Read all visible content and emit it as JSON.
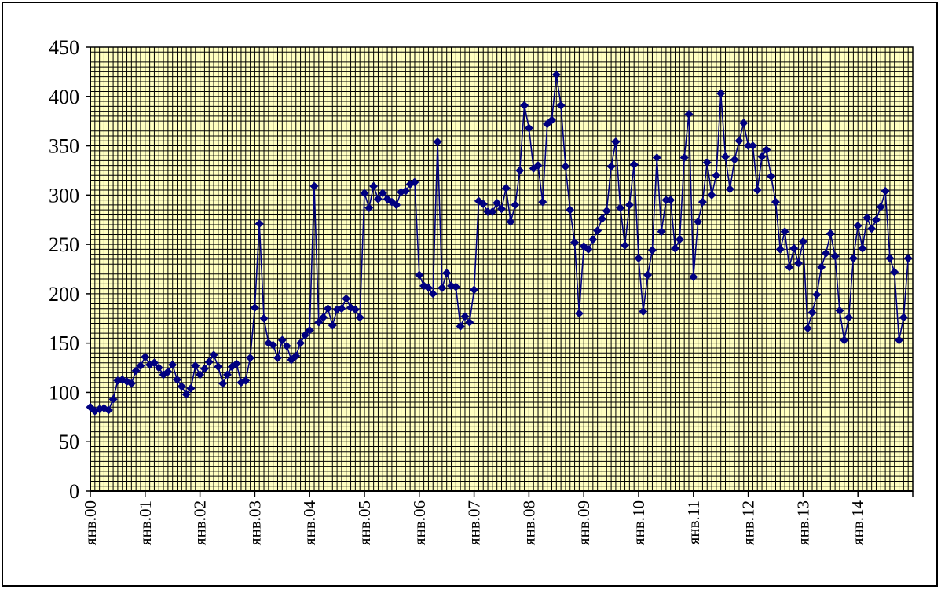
{
  "chart_data": {
    "type": "line",
    "title": "",
    "xlabel": "",
    "ylabel": "",
    "ylim": [
      0,
      450
    ],
    "y_ticks": [
      "0",
      "50",
      "100",
      "150",
      "200",
      "250",
      "300",
      "350",
      "400",
      "450"
    ],
    "x_tick_labels": [
      "янв.00",
      "янв.01",
      "янв.02",
      "янв.03",
      "янв.04",
      "янв.05",
      "янв.06",
      "янв.07",
      "янв.08",
      "янв.09",
      "янв.10",
      "янв.11",
      "янв.12",
      "янв.13",
      "янв.14"
    ],
    "x_range_months": [
      0,
      180
    ],
    "grid": "on",
    "legend": "none",
    "colors": {
      "series": "#000080",
      "plot_bg": "#FFFFC0",
      "grid": "#000000"
    },
    "series": [
      {
        "values": [
          85,
          81,
          83,
          84,
          82,
          93,
          112,
          113,
          111,
          109,
          122,
          127,
          136,
          128,
          130,
          125,
          118,
          121,
          128,
          113,
          106,
          98,
          104,
          127,
          118,
          124,
          131,
          138,
          126,
          109,
          118,
          126,
          129,
          110,
          112,
          135,
          186,
          271,
          175,
          150,
          148,
          135,
          153,
          147,
          133,
          137,
          150,
          158,
          163,
          309,
          171,
          176,
          185,
          168,
          184,
          185,
          195,
          186,
          184,
          176,
          302,
          287,
          309,
          296,
          302,
          296,
          293,
          290,
          303,
          304,
          311,
          313,
          219,
          208,
          206,
          200,
          354,
          206,
          221,
          208,
          207,
          167,
          177,
          171,
          204,
          294,
          291,
          283,
          283,
          292,
          286,
          307,
          273,
          290,
          325,
          391,
          368,
          327,
          330,
          293,
          372,
          376,
          422,
          391,
          329,
          285,
          252,
          180,
          248,
          245,
          255,
          264,
          276,
          284,
          329,
          354,
          287,
          249,
          290,
          331,
          236,
          182,
          219,
          244,
          338,
          263,
          295,
          295,
          246,
          255,
          338,
          382,
          217,
          273,
          293,
          333,
          300,
          320,
          403,
          339,
          306,
          336,
          355,
          373,
          350,
          350,
          305,
          339,
          346,
          319,
          293,
          245,
          263,
          227,
          246,
          231,
          253,
          165,
          181,
          199,
          227,
          241,
          261,
          238,
          183,
          153,
          176,
          236,
          269,
          246,
          277,
          266,
          275,
          288,
          304,
          236,
          222,
          153,
          176,
          236
        ]
      }
    ]
  }
}
